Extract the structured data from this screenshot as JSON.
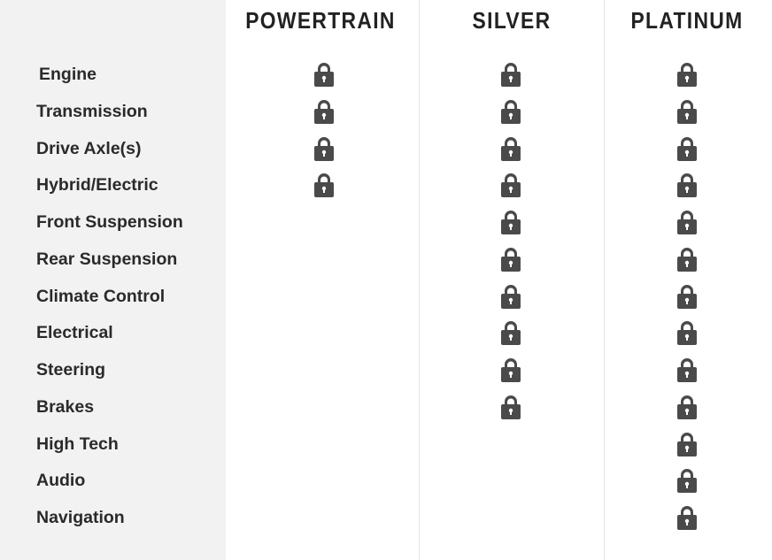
{
  "plans": [
    {
      "name": "POWERTRAIN"
    },
    {
      "name": "SILVER"
    },
    {
      "name": "PLATINUM"
    }
  ],
  "lock_icon": "lock-icon",
  "lock_color": "#4a4a4a",
  "components": [
    {
      "label": "Engine",
      "covered": [
        true,
        true,
        true
      ]
    },
    {
      "label": "Transmission",
      "covered": [
        true,
        true,
        true
      ]
    },
    {
      "label": "Drive Axle(s)",
      "covered": [
        true,
        true,
        true
      ]
    },
    {
      "label": "Hybrid/Electric",
      "covered": [
        true,
        true,
        true
      ]
    },
    {
      "label": "Front Suspension",
      "covered": [
        false,
        true,
        true
      ]
    },
    {
      "label": "Rear Suspension",
      "covered": [
        false,
        true,
        true
      ]
    },
    {
      "label": "Climate Control",
      "covered": [
        false,
        true,
        true
      ]
    },
    {
      "label": "Electrical",
      "covered": [
        false,
        true,
        true
      ]
    },
    {
      "label": "Steering",
      "covered": [
        false,
        true,
        true
      ]
    },
    {
      "label": "Brakes",
      "covered": [
        false,
        true,
        true
      ]
    },
    {
      "label": "High Tech",
      "covered": [
        false,
        false,
        true
      ]
    },
    {
      "label": "Audio",
      "covered": [
        false,
        false,
        true
      ]
    },
    {
      "label": "Navigation",
      "covered": [
        false,
        false,
        true
      ]
    }
  ]
}
